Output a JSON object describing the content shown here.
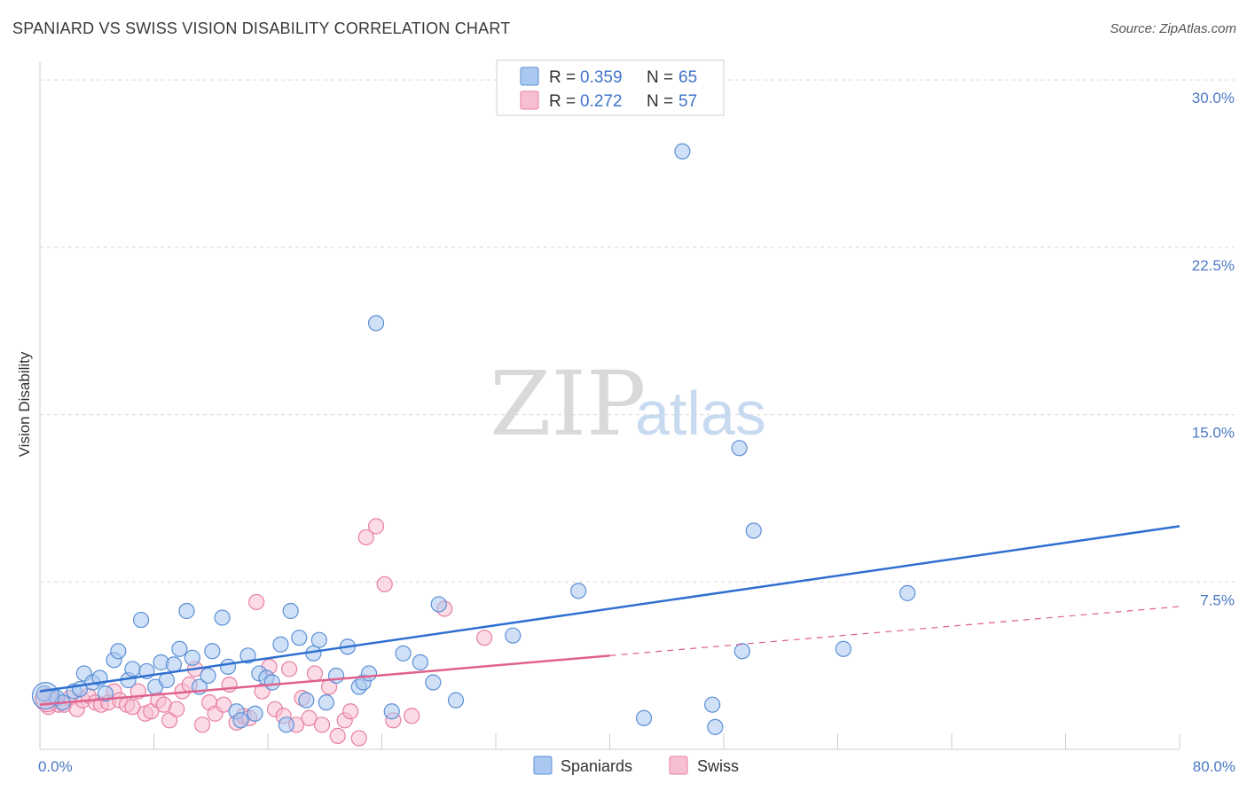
{
  "header": {
    "title": "SPANIARD VS SWISS VISION DISABILITY CORRELATION CHART",
    "source": "Source: ZipAtlas.com"
  },
  "watermark": {
    "zip": "ZIP",
    "atlas": "atlas"
  },
  "colors": {
    "spaniards_fill": "#aac8f0",
    "spaniards_stroke": "#5b8fd6",
    "spaniards_line": "#2f6fd0",
    "swiss_fill": "#f7bfd2",
    "swiss_stroke": "#e77fa2",
    "swiss_line": "#e0608e",
    "grid": "#d8d8d8",
    "tick_label": "#4a78c4"
  },
  "legend": {
    "rows": [
      {
        "r_label": "R = ",
        "r_value": "0.359",
        "n_label": "N = ",
        "n_value": "65"
      },
      {
        "r_label": "R = ",
        "r_value": "0.272",
        "n_label": "N = ",
        "n_value": "57"
      }
    ]
  },
  "chart_data": {
    "type": "scatter",
    "title": "SPANIARD VS SWISS VISION DISABILITY CORRELATION CHART",
    "xlabel": "",
    "ylabel": "Vision Disability",
    "xlim": [
      0,
      80
    ],
    "ylim": [
      0,
      30.8
    ],
    "x_tick_labels": [
      "0.0%",
      "80.0%"
    ],
    "y_ticks": [
      7.5,
      15.0,
      22.5,
      30.0
    ],
    "y_tick_labels": [
      "7.5%",
      "15.0%",
      "22.5%",
      "30.0%"
    ],
    "grid": true,
    "legend_position": "top-center",
    "series": [
      {
        "name": "Spaniards",
        "stats": {
          "r": 0.359,
          "n": 65
        },
        "trend": {
          "x0": 0,
          "y0": 2.6,
          "x1": 80,
          "y1": 10.0,
          "dashed_from": null
        },
        "points": [
          [
            0.3,
            2.5
          ],
          [
            1.2,
            2.3
          ],
          [
            1.6,
            2.1
          ],
          [
            2.4,
            2.6
          ],
          [
            2.8,
            2.7
          ],
          [
            3.1,
            3.4
          ],
          [
            3.7,
            3.0
          ],
          [
            4.2,
            3.2
          ],
          [
            4.6,
            2.5
          ],
          [
            5.2,
            4.0
          ],
          [
            5.5,
            4.4
          ],
          [
            6.2,
            3.1
          ],
          [
            6.5,
            3.6
          ],
          [
            7.1,
            5.8
          ],
          [
            7.5,
            3.5
          ],
          [
            8.1,
            2.8
          ],
          [
            8.5,
            3.9
          ],
          [
            8.9,
            3.1
          ],
          [
            9.4,
            3.8
          ],
          [
            9.8,
            4.5
          ],
          [
            10.3,
            6.2
          ],
          [
            10.7,
            4.1
          ],
          [
            11.2,
            2.8
          ],
          [
            11.8,
            3.3
          ],
          [
            12.1,
            4.4
          ],
          [
            12.8,
            5.9
          ],
          [
            13.2,
            3.7
          ],
          [
            13.8,
            1.7
          ],
          [
            14.1,
            1.3
          ],
          [
            14.6,
            4.2
          ],
          [
            15.1,
            1.6
          ],
          [
            15.4,
            3.4
          ],
          [
            15.9,
            3.2
          ],
          [
            16.3,
            3.0
          ],
          [
            16.9,
            4.7
          ],
          [
            17.3,
            1.1
          ],
          [
            17.6,
            6.2
          ],
          [
            18.2,
            5.0
          ],
          [
            18.7,
            2.2
          ],
          [
            19.2,
            4.3
          ],
          [
            19.6,
            4.9
          ],
          [
            20.1,
            2.1
          ],
          [
            20.8,
            3.3
          ],
          [
            21.6,
            4.6
          ],
          [
            22.4,
            2.8
          ],
          [
            22.7,
            3.0
          ],
          [
            23.1,
            3.4
          ],
          [
            23.6,
            19.1
          ],
          [
            24.7,
            1.7
          ],
          [
            25.5,
            4.3
          ],
          [
            26.7,
            3.9
          ],
          [
            27.6,
            3.0
          ],
          [
            28.0,
            6.5
          ],
          [
            29.2,
            2.2
          ],
          [
            33.2,
            5.1
          ],
          [
            37.8,
            7.1
          ],
          [
            42.4,
            1.4
          ],
          [
            45.1,
            26.8
          ],
          [
            47.2,
            2.0
          ],
          [
            47.4,
            1.0
          ],
          [
            49.1,
            13.5
          ],
          [
            49.3,
            4.4
          ],
          [
            50.1,
            9.8
          ],
          [
            56.4,
            4.5
          ],
          [
            60.9,
            7.0
          ]
        ]
      },
      {
        "name": "Swiss",
        "stats": {
          "r": 0.272,
          "n": 57
        },
        "trend": {
          "x0": 0,
          "y0": 2.0,
          "x1": 80,
          "y1": 6.4,
          "dashed_from": 40
        },
        "points": [
          [
            0.2,
            2.3
          ],
          [
            0.6,
            1.9
          ],
          [
            0.9,
            2.2
          ],
          [
            1.3,
            2.0
          ],
          [
            1.7,
            2.0
          ],
          [
            2.1,
            2.3
          ],
          [
            2.6,
            1.8
          ],
          [
            3.0,
            2.2
          ],
          [
            3.4,
            2.4
          ],
          [
            3.9,
            2.1
          ],
          [
            4.3,
            2.0
          ],
          [
            4.8,
            2.1
          ],
          [
            5.2,
            2.6
          ],
          [
            5.6,
            2.2
          ],
          [
            6.1,
            2.0
          ],
          [
            6.5,
            1.9
          ],
          [
            6.9,
            2.6
          ],
          [
            7.4,
            1.6
          ],
          [
            7.8,
            1.7
          ],
          [
            8.3,
            2.2
          ],
          [
            8.7,
            2.0
          ],
          [
            9.1,
            1.3
          ],
          [
            9.6,
            1.8
          ],
          [
            10.0,
            2.6
          ],
          [
            10.5,
            2.9
          ],
          [
            10.9,
            3.6
          ],
          [
            11.4,
            1.1
          ],
          [
            11.9,
            2.1
          ],
          [
            12.3,
            1.6
          ],
          [
            12.9,
            2.0
          ],
          [
            13.3,
            2.9
          ],
          [
            13.8,
            1.2
          ],
          [
            14.3,
            1.5
          ],
          [
            14.7,
            1.4
          ],
          [
            15.2,
            6.6
          ],
          [
            15.6,
            2.6
          ],
          [
            16.1,
            3.7
          ],
          [
            16.5,
            1.8
          ],
          [
            17.1,
            1.5
          ],
          [
            17.5,
            3.6
          ],
          [
            18.0,
            1.1
          ],
          [
            18.4,
            2.3
          ],
          [
            18.9,
            1.4
          ],
          [
            19.3,
            3.4
          ],
          [
            19.8,
            1.1
          ],
          [
            20.3,
            2.8
          ],
          [
            20.9,
            0.6
          ],
          [
            21.4,
            1.3
          ],
          [
            21.8,
            1.7
          ],
          [
            22.4,
            0.5
          ],
          [
            22.9,
            9.5
          ],
          [
            23.6,
            10.0
          ],
          [
            24.2,
            7.4
          ],
          [
            24.8,
            1.3
          ],
          [
            26.1,
            1.5
          ],
          [
            28.4,
            6.3
          ],
          [
            31.2,
            5.0
          ]
        ]
      }
    ]
  }
}
